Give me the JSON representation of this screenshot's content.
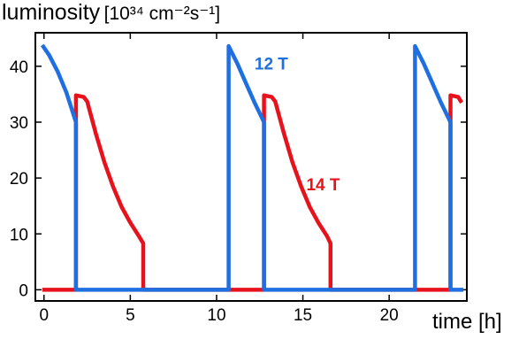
{
  "chart_data": {
    "type": "line",
    "title": "",
    "ylabel": "luminosity",
    "ylabel_unit": "[10³⁴ cm⁻²s⁻¹]",
    "xlabel": "time [h]",
    "xlim": [
      -0.5,
      24.5
    ],
    "ylim": [
      -2,
      46
    ],
    "x_ticks": [
      0,
      5,
      10,
      15,
      20
    ],
    "y_ticks": [
      0,
      10,
      20,
      30,
      40
    ],
    "grid": false,
    "legend": "none",
    "series": [
      {
        "name": "12 T",
        "color": "#1f6fe0",
        "points": [
          [
            -0.1,
            43.8
          ],
          [
            0.3,
            42.0
          ],
          [
            0.8,
            39.0
          ],
          [
            1.3,
            35.3
          ],
          [
            1.85,
            30.0
          ],
          [
            1.85,
            0
          ],
          [
            10.7,
            0
          ],
          [
            10.7,
            43.6
          ],
          [
            11.2,
            40.5
          ],
          [
            11.7,
            37.0
          ],
          [
            12.2,
            33.5
          ],
          [
            12.75,
            30.0
          ],
          [
            12.75,
            0
          ],
          [
            21.5,
            0
          ],
          [
            21.5,
            43.6
          ],
          [
            22.0,
            40.5
          ],
          [
            22.5,
            37.0
          ],
          [
            23.0,
            33.5
          ],
          [
            23.55,
            30.0
          ],
          [
            23.55,
            0
          ],
          [
            24.3,
            0
          ]
        ]
      },
      {
        "name": "14 T",
        "color": "#e8121c",
        "points": [
          [
            -0.1,
            0
          ],
          [
            1.85,
            0
          ],
          [
            1.85,
            34.8
          ],
          [
            2.3,
            34.5
          ],
          [
            2.5,
            33.7
          ],
          [
            3.0,
            28.0
          ],
          [
            3.5,
            22.8
          ],
          [
            4.0,
            18.5
          ],
          [
            4.5,
            14.8
          ],
          [
            5.0,
            12.0
          ],
          [
            5.5,
            9.6
          ],
          [
            5.75,
            8.3
          ],
          [
            5.75,
            0
          ],
          [
            12.75,
            0
          ],
          [
            12.75,
            34.8
          ],
          [
            13.2,
            34.5
          ],
          [
            13.4,
            33.7
          ],
          [
            13.9,
            28.0
          ],
          [
            14.4,
            22.8
          ],
          [
            14.9,
            18.5
          ],
          [
            15.4,
            14.8
          ],
          [
            15.9,
            12.0
          ],
          [
            16.4,
            9.6
          ],
          [
            16.6,
            8.3
          ],
          [
            16.6,
            0
          ],
          [
            23.55,
            0
          ],
          [
            23.55,
            34.8
          ],
          [
            24.0,
            34.5
          ],
          [
            24.2,
            33.5
          ]
        ]
      }
    ],
    "annotations": [
      {
        "text": "12 T",
        "x": 12.2,
        "y": 39.4,
        "color": "#1f6fe0"
      },
      {
        "text": "14 T",
        "x": 15.2,
        "y": 17.8,
        "color": "#e8121c"
      }
    ]
  }
}
